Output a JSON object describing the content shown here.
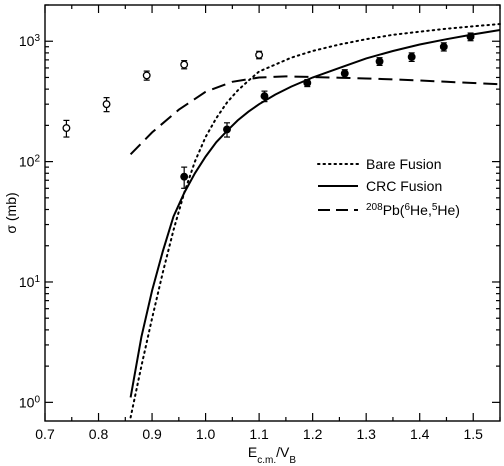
{
  "chart_data": {
    "type": "scatter",
    "title": "",
    "xlabel": {
      "main": "E",
      "sub1": "c.m.",
      "mid": "/V",
      "sub2": "B"
    },
    "ylabel": "σ (mb)",
    "xlim": [
      0.7,
      1.55
    ],
    "ylim": [
      0.7,
      2000
    ],
    "yscale": "log",
    "grid": false,
    "legend_position": "right",
    "x_ticks": [
      "0.7",
      "0.8",
      "0.9",
      "1.0",
      "1.1",
      "1.2",
      "1.3",
      "1.4",
      "1.5"
    ],
    "y_ticks": [
      {
        "base": "10",
        "exp": "0"
      },
      {
        "base": "10",
        "exp": "1"
      },
      {
        "base": "10",
        "exp": "2"
      },
      {
        "base": "10",
        "exp": "3"
      }
    ],
    "series": [
      {
        "name": "Bare Fusion",
        "style": "dotted",
        "x": [
          0.86,
          0.88,
          0.9,
          0.92,
          0.94,
          0.96,
          0.98,
          1.0,
          1.02,
          1.04,
          1.06,
          1.08,
          1.1,
          1.13,
          1.16,
          1.2,
          1.25,
          1.3,
          1.35,
          1.4,
          1.45,
          1.5,
          1.55
        ],
        "y": [
          0.75,
          2.0,
          5.0,
          12,
          27,
          55,
          100,
          160,
          230,
          310,
          390,
          470,
          560,
          640,
          730,
          830,
          940,
          1040,
          1130,
          1200,
          1270,
          1330,
          1390
        ]
      },
      {
        "name": "CRC Fusion",
        "style": "solid",
        "x": [
          0.86,
          0.88,
          0.9,
          0.92,
          0.94,
          0.96,
          0.98,
          1.0,
          1.02,
          1.04,
          1.06,
          1.08,
          1.1,
          1.13,
          1.16,
          1.2,
          1.25,
          1.3,
          1.35,
          1.4,
          1.45,
          1.5,
          1.55
        ],
        "y": [
          1.1,
          3.5,
          8.5,
          18,
          35,
          55,
          80,
          110,
          145,
          180,
          220,
          260,
          300,
          360,
          420,
          500,
          600,
          720,
          830,
          940,
          1040,
          1140,
          1240
        ]
      },
      {
        "name": "208Pb(6He,5He)",
        "legend": {
          "pre_sup": "208",
          "mid1": "Pb(",
          "sup2": "6",
          "mid2": "He,",
          "sup3": "5",
          "end": "He)"
        },
        "style": "dashed",
        "x": [
          0.86,
          0.9,
          0.95,
          1.0,
          1.05,
          1.1,
          1.15,
          1.2,
          1.25,
          1.3,
          1.35,
          1.4,
          1.45,
          1.5,
          1.55
        ],
        "y": [
          115,
          175,
          270,
          380,
          460,
          500,
          510,
          505,
          498,
          490,
          482,
          472,
          460,
          450,
          440
        ]
      },
      {
        "name": "open circles",
        "style": "open-marker",
        "x": [
          0.74,
          0.815,
          0.89,
          0.96,
          1.1
        ],
        "y": [
          190,
          300,
          520,
          640,
          770
        ],
        "yerr": [
          30,
          40,
          45,
          50,
          55
        ]
      },
      {
        "name": "filled circles",
        "style": "filled-marker",
        "x": [
          0.96,
          1.04,
          1.11,
          1.19,
          1.26,
          1.325,
          1.385,
          1.445,
          1.495
        ],
        "y": [
          75,
          185,
          350,
          450,
          540,
          680,
          740,
          900,
          1090
        ],
        "yerr": [
          15,
          25,
          35,
          30,
          40,
          50,
          60,
          70,
          80
        ]
      }
    ]
  }
}
